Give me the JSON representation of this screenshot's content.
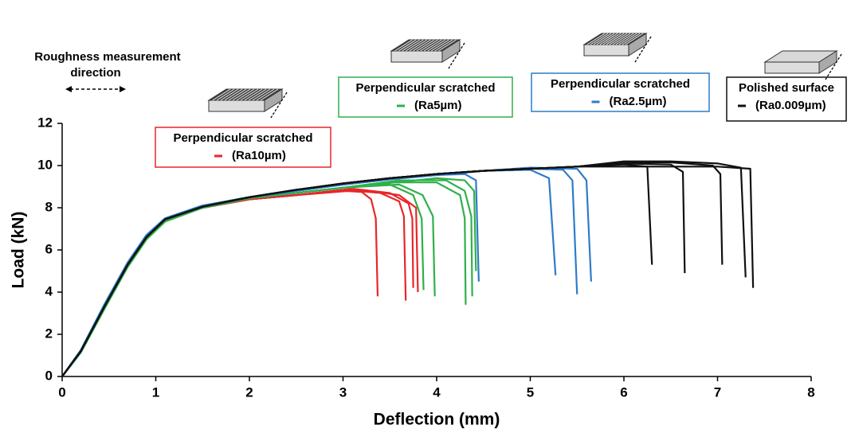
{
  "chart_data": {
    "type": "line",
    "xlabel": "Deflection (mm)",
    "ylabel": "Load (kN)",
    "annotation": [
      "Roughness measurement",
      "direction"
    ],
    "xlim": [
      0,
      8
    ],
    "xticks": [
      0,
      1,
      2,
      3,
      4,
      5,
      6,
      7,
      8
    ],
    "ylim": [
      0,
      12
    ],
    "yticks": [
      0,
      2,
      4,
      6,
      8,
      10,
      12
    ],
    "series": [
      {
        "name": "Perpendicular scratched",
        "label": "(Ra10µm)",
        "color": "#e8262a",
        "curves": [
          {
            "x": [
              0,
              0.2,
              0.45,
              0.7,
              0.9,
              1.1,
              1.5,
              2.0,
              2.5,
              3.0,
              3.2,
              3.3,
              3.35,
              3.37
            ],
            "y": [
              0,
              1.2,
              3.3,
              5.3,
              6.6,
              7.4,
              8.0,
              8.4,
              8.6,
              8.8,
              8.75,
              8.4,
              7.5,
              3.8
            ]
          },
          {
            "x": [
              0,
              0.2,
              0.45,
              0.7,
              0.9,
              1.1,
              1.5,
              2.0,
              2.5,
              3.0,
              3.4,
              3.6,
              3.65,
              3.67
            ],
            "y": [
              0,
              1.2,
              3.3,
              5.3,
              6.6,
              7.4,
              8.0,
              8.4,
              8.6,
              8.85,
              8.7,
              8.3,
              7.6,
              3.6
            ]
          },
          {
            "x": [
              0,
              0.2,
              0.45,
              0.7,
              0.9,
              1.1,
              1.5,
              2.0,
              2.5,
              3.1,
              3.5,
              3.7,
              3.74,
              3.75
            ],
            "y": [
              0,
              1.2,
              3.3,
              5.3,
              6.6,
              7.4,
              8.0,
              8.4,
              8.6,
              8.9,
              8.7,
              8.2,
              7.5,
              4.2
            ]
          },
          {
            "x": [
              0,
              0.2,
              0.45,
              0.7,
              0.9,
              1.1,
              1.5,
              2.0,
              2.5,
              3.2,
              3.6,
              3.78,
              3.8
            ],
            "y": [
              0,
              1.2,
              3.3,
              5.3,
              6.6,
              7.4,
              8.0,
              8.4,
              8.6,
              8.85,
              8.6,
              8.0,
              4.0
            ]
          }
        ]
      },
      {
        "name": "Perpendicular scratched",
        "label": "(Ra5µm)",
        "color": "#2fb04a",
        "curves": [
          {
            "x": [
              0,
              0.2,
              0.45,
              0.7,
              0.9,
              1.1,
              1.5,
              2.0,
              2.5,
              3.0,
              3.5,
              3.75,
              3.84,
              3.86
            ],
            "y": [
              0,
              1.15,
              3.2,
              5.2,
              6.5,
              7.35,
              8.0,
              8.45,
              8.7,
              8.95,
              9.1,
              8.6,
              7.5,
              4.1
            ]
          },
          {
            "x": [
              0,
              0.2,
              0.45,
              0.7,
              0.9,
              1.1,
              1.5,
              2.0,
              2.5,
              3.0,
              3.6,
              3.85,
              3.96,
              3.98
            ],
            "y": [
              0,
              1.15,
              3.2,
              5.2,
              6.5,
              7.35,
              8.0,
              8.45,
              8.7,
              8.95,
              9.1,
              8.6,
              7.6,
              3.8
            ]
          },
          {
            "x": [
              0,
              0.2,
              0.45,
              0.7,
              0.9,
              1.1,
              1.5,
              2.0,
              2.5,
              3.0,
              3.5,
              4.0,
              4.25,
              4.3,
              4.31
            ],
            "y": [
              0,
              1.15,
              3.2,
              5.2,
              6.5,
              7.35,
              8.0,
              8.45,
              8.7,
              8.95,
              9.2,
              9.2,
              8.6,
              7.5,
              3.4
            ]
          },
          {
            "x": [
              0,
              0.2,
              0.45,
              0.7,
              0.9,
              1.1,
              1.5,
              2.0,
              2.5,
              3.0,
              3.6,
              4.1,
              4.3,
              4.37,
              4.38
            ],
            "y": [
              0,
              1.15,
              3.2,
              5.2,
              6.5,
              7.35,
              8.0,
              8.45,
              8.7,
              8.95,
              9.3,
              9.3,
              8.8,
              7.6,
              3.8
            ]
          },
          {
            "x": [
              0,
              0.2,
              0.45,
              0.7,
              0.9,
              1.1,
              1.5,
              2.0,
              2.5,
              3.0,
              4.0,
              4.3,
              4.4,
              4.42
            ],
            "y": [
              0,
              1.15,
              3.2,
              5.2,
              6.5,
              7.35,
              8.0,
              8.45,
              8.7,
              8.95,
              9.4,
              9.3,
              8.8,
              5.0
            ]
          }
        ]
      },
      {
        "name": "Perpendicular scratched",
        "label": "(Ra2.5µm)",
        "color": "#2f7bc8",
        "curves": [
          {
            "x": [
              0,
              0.2,
              0.45,
              0.7,
              0.9,
              1.1,
              1.5,
              2.0,
              2.5,
              3.0,
              3.5,
              4.0,
              4.3,
              4.42,
              4.45
            ],
            "y": [
              0,
              1.25,
              3.4,
              5.4,
              6.7,
              7.5,
              8.1,
              8.5,
              8.8,
              9.1,
              9.35,
              9.55,
              9.6,
              9.3,
              4.5
            ]
          },
          {
            "x": [
              0,
              0.2,
              0.45,
              0.7,
              0.9,
              1.1,
              1.5,
              2.0,
              2.5,
              3.0,
              3.5,
              4.0,
              4.5,
              5.0,
              5.1,
              5.2,
              5.27
            ],
            "y": [
              0,
              1.25,
              3.4,
              5.4,
              6.7,
              7.5,
              8.1,
              8.5,
              8.8,
              9.1,
              9.35,
              9.55,
              9.75,
              9.8,
              9.6,
              9.4,
              4.8
            ]
          },
          {
            "x": [
              0,
              0.2,
              0.45,
              0.7,
              0.9,
              1.1,
              1.5,
              2.0,
              2.5,
              3.0,
              3.5,
              4.0,
              4.5,
              5.0,
              5.35,
              5.45,
              5.5
            ],
            "y": [
              0,
              1.25,
              3.4,
              5.4,
              6.7,
              7.5,
              8.1,
              8.5,
              8.8,
              9.1,
              9.35,
              9.55,
              9.75,
              9.85,
              9.8,
              9.3,
              3.9
            ]
          },
          {
            "x": [
              0,
              0.2,
              0.45,
              0.7,
              0.9,
              1.1,
              1.5,
              2.0,
              2.5,
              3.0,
              3.5,
              4.0,
              4.5,
              5.0,
              5.5,
              5.6,
              5.65
            ],
            "y": [
              0,
              1.25,
              3.4,
              5.4,
              6.7,
              7.5,
              8.1,
              8.5,
              8.8,
              9.1,
              9.35,
              9.55,
              9.75,
              9.9,
              9.85,
              9.3,
              4.5
            ]
          }
        ]
      },
      {
        "name": "Polished surface",
        "label": "(Ra0.009µm)",
        "color": "#111111",
        "curves": [
          {
            "x": [
              0,
              0.2,
              0.45,
              0.7,
              0.9,
              1.1,
              1.5,
              2.0,
              2.5,
              3.0,
              3.5,
              4.0,
              4.5,
              5.0,
              5.5,
              6.0,
              6.25,
              6.3
            ],
            "y": [
              0,
              1.2,
              3.3,
              5.3,
              6.6,
              7.45,
              8.05,
              8.5,
              8.85,
              9.15,
              9.4,
              9.6,
              9.75,
              9.85,
              9.95,
              10.05,
              9.95,
              5.3
            ]
          },
          {
            "x": [
              0,
              0.2,
              0.45,
              0.7,
              0.9,
              1.1,
              1.5,
              2.0,
              2.5,
              3.0,
              3.5,
              4.0,
              4.5,
              5.0,
              5.5,
              6.0,
              6.5,
              6.63,
              6.65
            ],
            "y": [
              0,
              1.2,
              3.3,
              5.3,
              6.6,
              7.45,
              8.05,
              8.5,
              8.85,
              9.15,
              9.4,
              9.6,
              9.75,
              9.85,
              9.95,
              10.1,
              10.05,
              9.7,
              4.9
            ]
          },
          {
            "x": [
              0,
              0.2,
              0.45,
              0.7,
              0.9,
              1.1,
              1.5,
              2.0,
              2.5,
              3.0,
              3.5,
              4.0,
              4.5,
              5.0,
              5.5,
              6.0,
              6.5,
              6.95,
              7.03,
              7.05
            ],
            "y": [
              0,
              1.2,
              3.3,
              5.3,
              6.6,
              7.45,
              8.05,
              8.5,
              8.85,
              9.15,
              9.4,
              9.6,
              9.75,
              9.85,
              9.95,
              10.15,
              10.15,
              10.0,
              9.6,
              5.3
            ]
          },
          {
            "x": [
              0,
              0.2,
              0.45,
              0.7,
              0.9,
              1.1,
              1.5,
              2.0,
              2.5,
              3.0,
              3.5,
              4.0,
              4.5,
              5.0,
              5.5,
              6.0,
              6.5,
              7.0,
              7.25,
              7.3
            ],
            "y": [
              0,
              1.2,
              3.3,
              5.3,
              6.6,
              7.45,
              8.05,
              8.5,
              8.85,
              9.15,
              9.4,
              9.6,
              9.75,
              9.85,
              9.95,
              10.2,
              10.2,
              10.1,
              9.9,
              4.7
            ]
          },
          {
            "x": [
              0,
              0.2,
              0.45,
              0.7,
              0.9,
              1.1,
              1.5,
              2.0,
              2.5,
              3.0,
              3.5,
              4.0,
              4.5,
              5.0,
              5.5,
              6.0,
              6.5,
              7.0,
              7.35,
              7.38
            ],
            "y": [
              0,
              1.2,
              3.3,
              5.3,
              6.6,
              7.45,
              8.05,
              8.5,
              8.85,
              9.15,
              9.4,
              9.6,
              9.75,
              9.85,
              9.95,
              9.95,
              9.95,
              9.95,
              9.85,
              4.2
            ]
          }
        ]
      }
    ]
  }
}
